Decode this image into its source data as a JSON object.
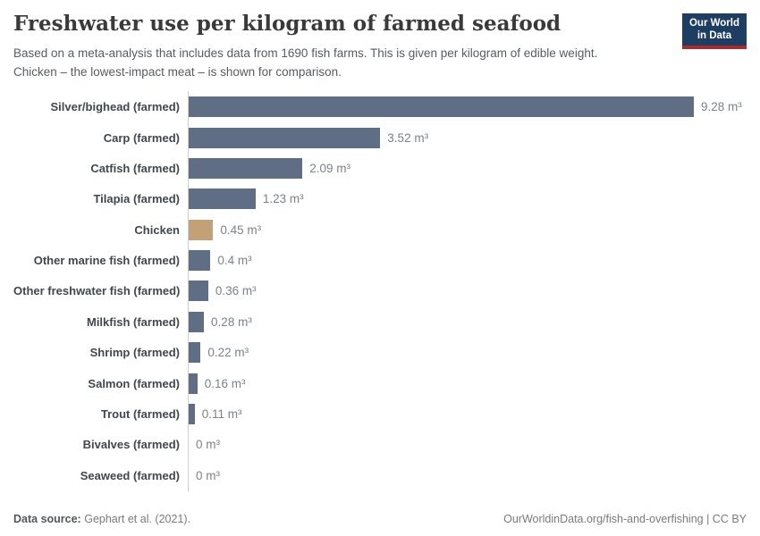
{
  "chart_data": {
    "type": "bar",
    "orientation": "horizontal",
    "title": "Freshwater use per kilogram of farmed seafood",
    "subtitle_line1": "Based on a meta-analysis that includes data from 1690 fish farms. This is given per kilogram of edible weight.",
    "subtitle_line2": "Chicken – the lowest-impact meat – is shown for comparison.",
    "unit": "m³",
    "xlabel": "",
    "ylabel": "",
    "xlim": [
      0,
      9.28
    ],
    "grid": false,
    "legend": false,
    "categories": [
      "Silver/bighead (farmed)",
      "Carp (farmed)",
      "Catfish (farmed)",
      "Tilapia (farmed)",
      "Chicken",
      "Other marine fish (farmed)",
      "Other freshwater fish (farmed)",
      "Milkfish (farmed)",
      "Shrimp (farmed)",
      "Salmon (farmed)",
      "Trout (farmed)",
      "Bivalves (farmed)",
      "Seaweed (farmed)"
    ],
    "values": [
      9.28,
      3.52,
      2.09,
      1.23,
      0.45,
      0.4,
      0.36,
      0.28,
      0.22,
      0.16,
      0.11,
      0,
      0
    ],
    "value_labels": [
      "9.28 m³",
      "3.52 m³",
      "2.09 m³",
      "1.23 m³",
      "0.45 m³",
      "0.4 m³",
      "0.36 m³",
      "0.28 m³",
      "0.22 m³",
      "0.16 m³",
      "0.11 m³",
      "0 m³",
      "0 m³"
    ],
    "bar_color": "#5f6e84",
    "highlight": {
      "category": "Chicken",
      "color": "#c3a075"
    },
    "axis_line_color": "#cfcfcf"
  },
  "logo": {
    "line1": "Our World",
    "line2": "in Data",
    "bg_color": "#1d3d63",
    "accent_color": "#a82b31"
  },
  "footer": {
    "source_label": "Data source:",
    "source_value": "Gephart et al. (2021).",
    "credit": "OurWorldinData.org/fish-and-overfishing | CC BY"
  }
}
